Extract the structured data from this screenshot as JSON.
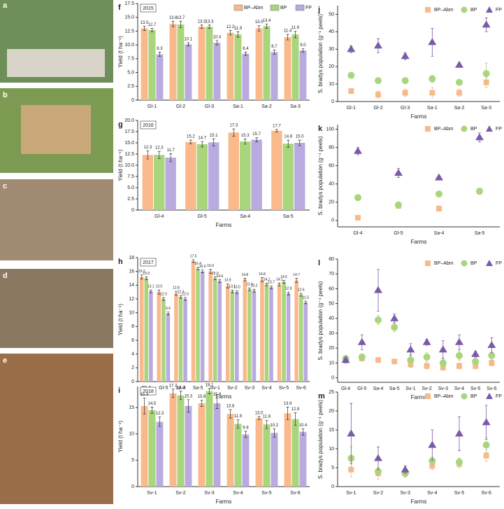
{
  "photo_panels": [
    "a",
    "b",
    "c",
    "d",
    "e"
  ],
  "chart_data": [
    {
      "type": "bar",
      "panel": "f",
      "title": "2015",
      "ylabel": "Yield (t ha⁻¹)",
      "legend": "upper right",
      "categories": [
        "Gl-1",
        "Gl-2",
        "Gl-3",
        "Sa-1",
        "Sa-2",
        "Sa-3"
      ],
      "ylim": [
        0,
        17.5
      ],
      "yticks": [
        0,
        2.5,
        {
          "value": 5,
          "label": "5.0"
        },
        7.5,
        {
          "value": 10,
          "label": "10.0"
        },
        12.5,
        {
          "value": 15,
          "label": "15.0"
        },
        17.5
      ],
      "series": [
        {
          "name": "BP–Abm",
          "color": "#f9b98a",
          "values": [
            13,
            13.8,
            13.3,
            12.2,
            13,
            11.4
          ],
          "value_labels": [
            "13.0",
            "13.8",
            "13.3",
            "12.2",
            "13.0",
            "11.4"
          ],
          "errors": [
            0.4,
            0.5,
            0.3,
            0.4,
            0.5,
            0.5
          ]
        },
        {
          "name": "BP",
          "color": "#a9d57c",
          "values": [
            12.7,
            13.7,
            13.3,
            11.9,
            13.4,
            11.9
          ],
          "value_labels": [
            "12.7",
            "13.7",
            "13.3",
            "11.9",
            "13.4",
            "11.9"
          ],
          "errors": [
            0.3,
            0.6,
            0.3,
            0.5,
            0.4,
            0.6
          ]
        },
        {
          "name": "FP",
          "color": "#b9aadf",
          "values": [
            8.3,
            10.1,
            10.4,
            8.4,
            8.7,
            9
          ],
          "value_labels": [
            "8.3",
            "10.1",
            "10.4",
            "8.4",
            "8.7",
            "9.0"
          ],
          "errors": [
            0.4,
            0.3,
            0.4,
            0.3,
            0.4,
            0.3
          ]
        }
      ]
    },
    {
      "type": "bar",
      "panel": "g",
      "title": "2016",
      "ylabel": "Yield (t ha⁻¹)",
      "xlabel": "Farms",
      "categories": [
        "Gl-4",
        "Gl-5",
        "Sa-4",
        "Sa-5"
      ],
      "ylim": [
        0,
        20
      ],
      "yticks": [
        0,
        2.5,
        {
          "value": 5,
          "label": "5.0"
        },
        7.5,
        {
          "value": 10,
          "label": "10.0"
        },
        12.5,
        {
          "value": 15,
          "label": "15.0"
        },
        17.5,
        {
          "value": 20,
          "label": "20.0"
        }
      ],
      "series": [
        {
          "name": "BP–Abm",
          "color": "#f9b98a",
          "values": [
            12.3,
            15.2,
            17.3,
            17.7
          ],
          "value_labels": [
            "12.3",
            "15.2",
            "17.3",
            "17.7"
          ],
          "errors": [
            0.9,
            0.4,
            0.8,
            0.3
          ]
        },
        {
          "name": "BP",
          "color": "#a9d57c",
          "values": [
            12.3,
            14.7,
            15.3,
            14.8
          ],
          "value_labels": [
            "12.3",
            "14.7",
            "15.3",
            "14.8"
          ],
          "errors": [
            0.8,
            0.6,
            0.6,
            0.8
          ]
        },
        {
          "name": "FP",
          "color": "#b9aadf",
          "values": [
            11.7,
            15.1,
            15.7,
            15
          ],
          "value_labels": [
            "11.7",
            "15.1",
            "15.7",
            "15.0"
          ],
          "errors": [
            0.9,
            0.8,
            0.5,
            0.6
          ]
        }
      ]
    },
    {
      "type": "bar",
      "panel": "h",
      "title": "2017",
      "ylabel": "Yield (t ha⁻¹)",
      "xlabel": "Farms",
      "categories": [
        "Gl-4",
        "Gl-5",
        "Sa-4",
        "Sa-5",
        "Sv-1",
        "Sv-2",
        "Sv-3",
        "Sv-4",
        "Sv-5",
        "Sv-6"
      ],
      "ylim": [
        0,
        18
      ],
      "yticks": [
        0,
        2,
        4,
        6,
        8,
        10,
        12,
        14,
        16,
        18
      ],
      "series": [
        {
          "name": "BP–Abm",
          "color": "#f9b98a",
          "values": [
            15.2,
            13,
            12.8,
            17.5,
            16,
            13.9,
            14.8,
            14.8,
            14.1,
            14.7
          ],
          "value_labels": [
            "15.2",
            "13.0",
            "12.8",
            "17.5",
            "16.0",
            "13.9",
            "14.8",
            "14.8",
            "14.1",
            "14.7"
          ],
          "errors": [
            0.3,
            0.3,
            0.3,
            0.2,
            0.3,
            0.3,
            0.2,
            0.3,
            0.2,
            0.3
          ]
        },
        {
          "name": "BP",
          "color": "#a9d57c",
          "values": [
            15,
            12,
            12.3,
            16.4,
            15,
            13.1,
            13.4,
            14.1,
            14.5,
            12.6
          ],
          "value_labels": [
            "15.0",
            "12.0",
            "12.3",
            "16.4",
            "15.0",
            "13.1",
            "13.4",
            "14.1",
            "14.5",
            "12.6"
          ],
          "errors": [
            0.2,
            0.2,
            0.2,
            0.2,
            0.2,
            0.2,
            0.2,
            0.2,
            0.2,
            0.2
          ]
        },
        {
          "name": "FP",
          "color": "#b9aadf",
          "values": [
            13.1,
            9.9,
            12,
            16,
            14.6,
            13,
            13.2,
            13.7,
            12.8,
            11.5
          ],
          "value_labels": [
            "13.1",
            "9.9",
            "12.0",
            "16.0",
            "14.6",
            "13.0",
            "13.2",
            "13.7",
            "12.8",
            "11.5"
          ],
          "errors": [
            0.2,
            0.2,
            0.2,
            0.2,
            0.2,
            0.2,
            0.2,
            0.2,
            0.2,
            0.2
          ]
        }
      ]
    },
    {
      "type": "bar",
      "panel": "i",
      "title": "2018",
      "ylabel": "Yield (t ha⁻¹)",
      "xlabel": "Farms",
      "categories": [
        "Sv-1",
        "Sv-2",
        "Sv-3",
        "Sv-4",
        "Sv-5",
        "Sv-6"
      ],
      "ylim": [
        0,
        19
      ],
      "yticks": [
        0,
        5,
        10,
        15
      ],
      "series": [
        {
          "name": "BP–Abm",
          "color": "#f9b98a",
          "values": [
            15.3,
            17.7,
            15.8,
            13.8,
            13,
            13.9
          ],
          "value_labels": [
            "15.3",
            "17.7",
            "15.8",
            "13.8",
            "13.0",
            "13.9"
          ],
          "errors": [
            1.5,
            0.8,
            0.6,
            0.8,
            0.3,
            1.2
          ]
        },
        {
          "name": "BP",
          "color": "#a9d57c",
          "values": [
            14.5,
            17.3,
            18.1,
            11.9,
            11.8,
            12.8
          ],
          "value_labels": [
            "14.5",
            "17.3",
            "18.1",
            "11.9",
            "11.8",
            "12.8"
          ],
          "errors": [
            0.6,
            0.8,
            0.5,
            0.8,
            0.8,
            1.2
          ]
        },
        {
          "name": "FP",
          "color": "#b9aadf",
          "values": [
            12.3,
            15.3,
            15.8,
            9.9,
            10.2,
            10.4
          ],
          "value_labels": [
            "12.3",
            "15.3",
            "15.8",
            "9.9",
            "10.2",
            "10.4"
          ],
          "errors": [
            0.9,
            1.2,
            1,
            0.6,
            0.8,
            0.6
          ]
        }
      ]
    },
    {
      "type": "scatter",
      "panel": "j",
      "ylabel": "S. bradys population (g⁻¹ peels)",
      "xlabel": "Farms",
      "legend": "upper right",
      "categories": [
        "Gl-1",
        "Gl-2",
        "Gl-3",
        "Sa-1",
        "Sa-2",
        "Sa-3"
      ],
      "ylim": [
        0,
        55
      ],
      "yticks": [
        0,
        10,
        20,
        30,
        40,
        50
      ],
      "series": [
        {
          "name": "BP–Abm",
          "color": "#f9b98a",
          "marker": "square",
          "values": [
            6,
            4,
            5,
            5,
            5,
            11
          ],
          "errors": [
            1,
            2,
            2,
            3,
            2,
            3
          ]
        },
        {
          "name": "BP",
          "color": "#a9d57c",
          "marker": "circle",
          "values": [
            15,
            12,
            12,
            13,
            11,
            16
          ],
          "errors": [
            1,
            1,
            1,
            2,
            1,
            6
          ]
        },
        {
          "name": "FP",
          "color": "#7a5ba8",
          "marker": "triangle",
          "values": [
            30,
            32,
            26,
            34,
            21,
            44
          ],
          "errors": [
            2,
            4,
            2,
            8,
            1,
            4
          ]
        }
      ]
    },
    {
      "type": "scatter",
      "panel": "k",
      "ylabel": "S. bradys population (g⁻¹ peels)",
      "xlabel": "Farms",
      "legend": "upper right",
      "categories": [
        "Gl-4",
        "Gl-5",
        "Sa-4",
        "Sa-5"
      ],
      "ylim": [
        -7,
        105
      ],
      "yticks": [
        0,
        20,
        40,
        60,
        80,
        100
      ],
      "series": [
        {
          "name": "BP–Abm",
          "color": "#f9b98a",
          "marker": "square",
          "values": [
            3,
            16,
            13,
            32
          ],
          "errors": [
            1,
            2,
            3,
            3
          ]
        },
        {
          "name": "BP",
          "color": "#a9d57c",
          "marker": "circle",
          "values": [
            25,
            17,
            29,
            32
          ],
          "errors": [
            2,
            2,
            2,
            3
          ]
        },
        {
          "name": "FP",
          "color": "#7a5ba8",
          "marker": "triangle",
          "values": [
            76,
            52,
            47,
            91
          ],
          "errors": [
            4,
            5,
            2,
            5
          ]
        }
      ]
    },
    {
      "type": "scatter",
      "panel": "l",
      "ylabel": "S. bradys population (g⁻¹ peels)",
      "xlabel": "Farms",
      "legend": "upper right",
      "categories": [
        "Gl-4",
        "Gl-5",
        "Sa-4",
        "Sa-5",
        "Sv-1",
        "Sv-2",
        "Sv-3",
        "Sv-4",
        "Sv-5",
        "Sv-6"
      ],
      "ylim": [
        -3,
        80
      ],
      "yticks": [
        0,
        10,
        20,
        30,
        40,
        50,
        60,
        70,
        80
      ],
      "series": [
        {
          "name": "BP–Abm",
          "color": "#f9b98a",
          "marker": "square",
          "values": [
            12,
            13,
            12,
            11,
            9,
            8,
            7,
            8,
            8,
            10
          ],
          "errors": [
            1,
            1,
            1,
            1,
            2,
            2,
            2,
            2,
            2,
            2
          ]
        },
        {
          "name": "BP",
          "color": "#a9d57c",
          "marker": "circle",
          "values": [
            13,
            14,
            39,
            34,
            12,
            14,
            10,
            15,
            11,
            15
          ],
          "errors": [
            2,
            2,
            3,
            3,
            4,
            3,
            3,
            3,
            2,
            3
          ]
        },
        {
          "name": "FP",
          "color": "#7a5ba8",
          "marker": "triangle",
          "values": [
            12,
            24,
            59,
            40,
            19,
            24,
            19,
            24,
            16,
            22
          ],
          "errors": [
            2,
            5,
            14,
            3,
            4,
            2,
            6,
            5,
            2,
            5
          ]
        }
      ]
    },
    {
      "type": "scatter",
      "panel": "m",
      "ylabel": "S. bradys population (g⁻¹ peels)",
      "xlabel": "Farms",
      "legend": "upper right",
      "categories": [
        "Sv-1",
        "Sv-2",
        "Sv-3",
        "Sv-4",
        "Sv-5",
        "Sv-6"
      ],
      "ylim": [
        0,
        25
      ],
      "yticks": [
        0,
        5,
        10,
        15,
        20,
        25
      ],
      "series": [
        {
          "name": "BP–Abm",
          "color": "#f9b98a",
          "marker": "square",
          "values": [
            4.5,
            3.5,
            3.5,
            5.5,
            6,
            8.2
          ],
          "errors": [
            2,
            1.5,
            1,
            1,
            1,
            1.5
          ]
        },
        {
          "name": "BP",
          "color": "#a9d57c",
          "marker": "circle",
          "values": [
            7.5,
            4,
            3.5,
            6.8,
            6.5,
            11
          ],
          "errors": [
            3,
            1,
            1,
            1,
            1,
            2
          ]
        },
        {
          "name": "FP",
          "color": "#7a5ba8",
          "marker": "triangle",
          "values": [
            14,
            7.5,
            4.5,
            11,
            14,
            17
          ],
          "errors": [
            8,
            3,
            1,
            4,
            4.5,
            4.5
          ]
        }
      ]
    }
  ]
}
